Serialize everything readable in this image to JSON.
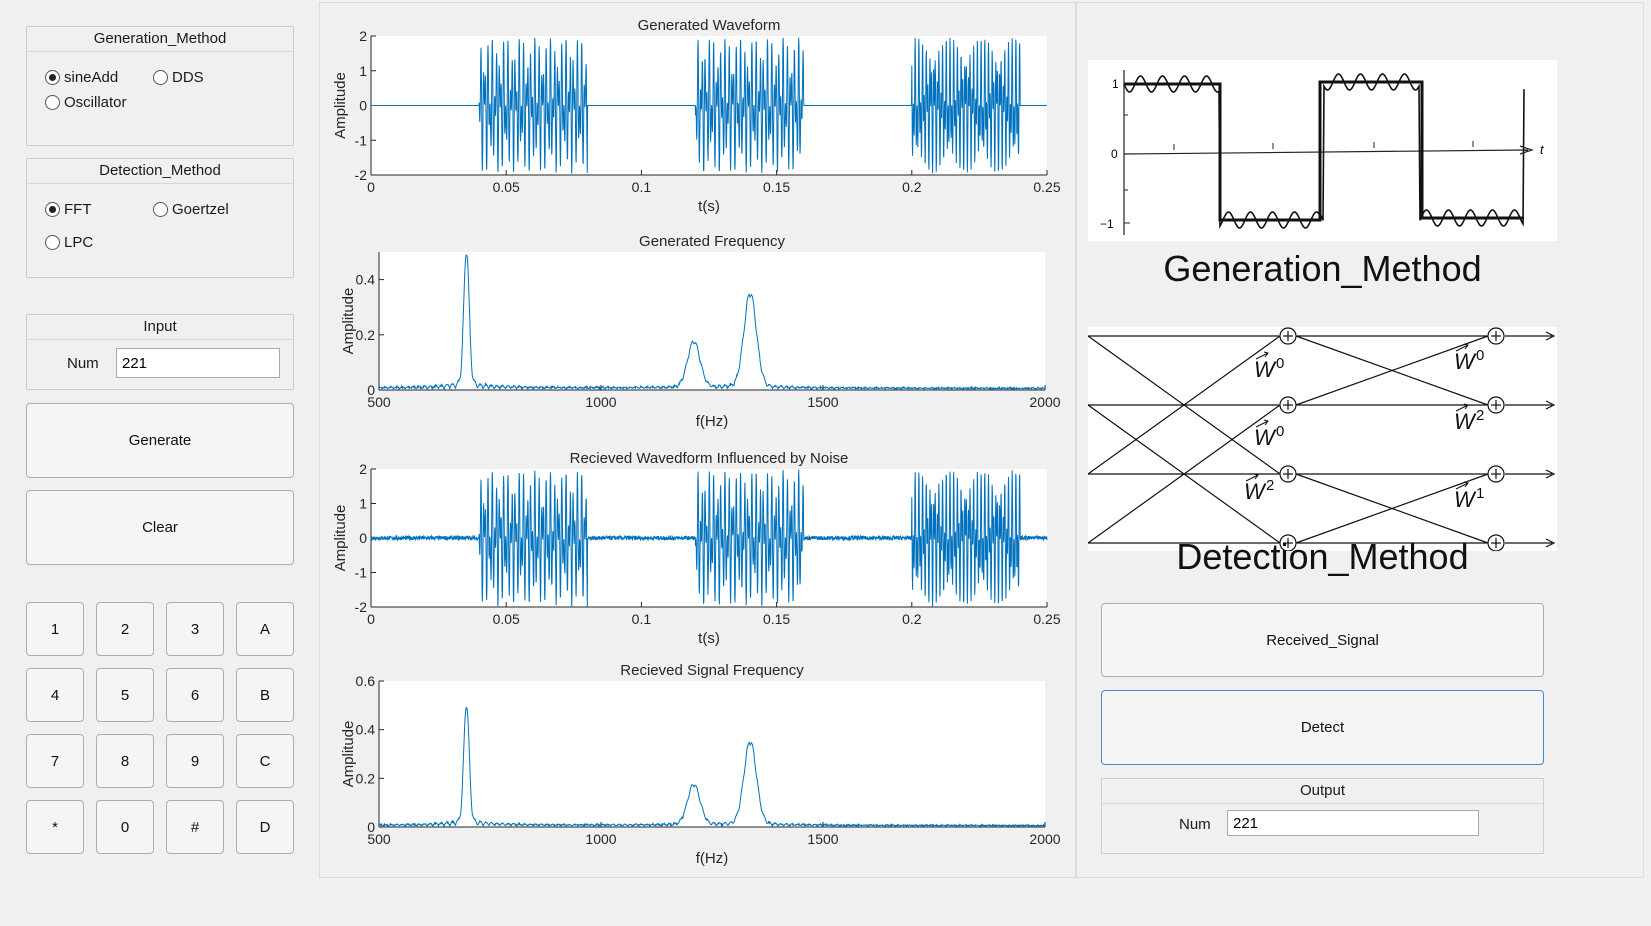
{
  "left": {
    "generation": {
      "title": "Generation_Method",
      "options": [
        {
          "label": "sineAdd",
          "selected": true
        },
        {
          "label": "DDS",
          "selected": false
        },
        {
          "label": "Oscillator",
          "selected": false
        }
      ]
    },
    "detection": {
      "title": "Detection_Method",
      "options": [
        {
          "label": "FFT",
          "selected": true
        },
        {
          "label": "Goertzel",
          "selected": false
        },
        {
          "label": "LPC",
          "selected": false
        }
      ]
    },
    "input": {
      "title": "Input",
      "num_label": "Num",
      "num_value": "221"
    },
    "generate_label": "Generate",
    "clear_label": "Clear",
    "keypad": [
      "1",
      "2",
      "3",
      "A",
      "4",
      "5",
      "6",
      "B",
      "7",
      "8",
      "9",
      "C",
      "*",
      "0",
      "#",
      "D"
    ]
  },
  "chart_data": [
    {
      "type": "line",
      "title": "Generated Waveform",
      "xlabel": "t(s)",
      "ylabel": "Amplitude",
      "xlim": [
        0,
        0.25
      ],
      "ylim": [
        -2,
        2
      ],
      "xticks": [
        "0",
        "0.05",
        "0.1",
        "0.15",
        "0.2",
        "0.25"
      ],
      "yticks": [
        "-2",
        "-1",
        "0",
        "1",
        "2"
      ],
      "bursts": [
        [
          0.04,
          0.08
        ],
        [
          0.12,
          0.16
        ],
        [
          0.2,
          0.24
        ]
      ],
      "amplitude": 2,
      "noise": false
    },
    {
      "type": "line",
      "title": "Generated Frequency",
      "xlabel": "f(Hz)",
      "ylabel": "Amplitude",
      "xlim": [
        500,
        2000
      ],
      "ylim": [
        0,
        0.5
      ],
      "xticks": [
        "500",
        "1000",
        "1500",
        "2000"
      ],
      "yticks": [
        "0",
        "0.2",
        "0.4"
      ],
      "peaks": [
        {
          "f": 697,
          "a": 0.48
        },
        {
          "f": 1209,
          "a": 0.16
        },
        {
          "f": 1336,
          "a": 0.33
        }
      ]
    },
    {
      "type": "line",
      "title": "Recieved Wavedform Influenced by Noise",
      "xlabel": "t(s)",
      "ylabel": "Amplitude",
      "xlim": [
        0,
        0.25
      ],
      "ylim": [
        -2,
        2
      ],
      "xticks": [
        "0",
        "0.05",
        "0.1",
        "0.15",
        "0.2",
        "0.25"
      ],
      "yticks": [
        "-2",
        "-1",
        "0",
        "1",
        "2"
      ],
      "bursts": [
        [
          0.04,
          0.08
        ],
        [
          0.12,
          0.16
        ],
        [
          0.2,
          0.24
        ]
      ],
      "amplitude": 2,
      "noise": true
    },
    {
      "type": "line",
      "title": "Recieved Signal Frequency",
      "xlabel": "f(Hz)",
      "ylabel": "Amplitude",
      "xlim": [
        500,
        2000
      ],
      "ylim": [
        0,
        0.6
      ],
      "xticks": [
        "500",
        "1000",
        "1500",
        "2000"
      ],
      "yticks": [
        "0",
        "0.2",
        "0.4",
        "0.6"
      ],
      "peaks": [
        {
          "f": 697,
          "a": 0.48
        },
        {
          "f": 1209,
          "a": 0.16
        },
        {
          "f": 1336,
          "a": 0.33
        }
      ]
    }
  ],
  "right": {
    "generation_image_label": "Generation_Method",
    "detection_image_label": "Detection_Method",
    "received_signal_label": "Received_Signal",
    "detect_label": "Detect",
    "output": {
      "title": "Output",
      "num_label": "Num",
      "num_value": "221"
    },
    "square_wave": {
      "y_ticks": [
        "1",
        "0",
        "−1"
      ],
      "axis_label": "t"
    },
    "butterfly_weights": [
      "W",
      "0",
      "2",
      "1"
    ]
  },
  "colors": {
    "line": "#0072bd",
    "panel": "#f0f0f0"
  }
}
